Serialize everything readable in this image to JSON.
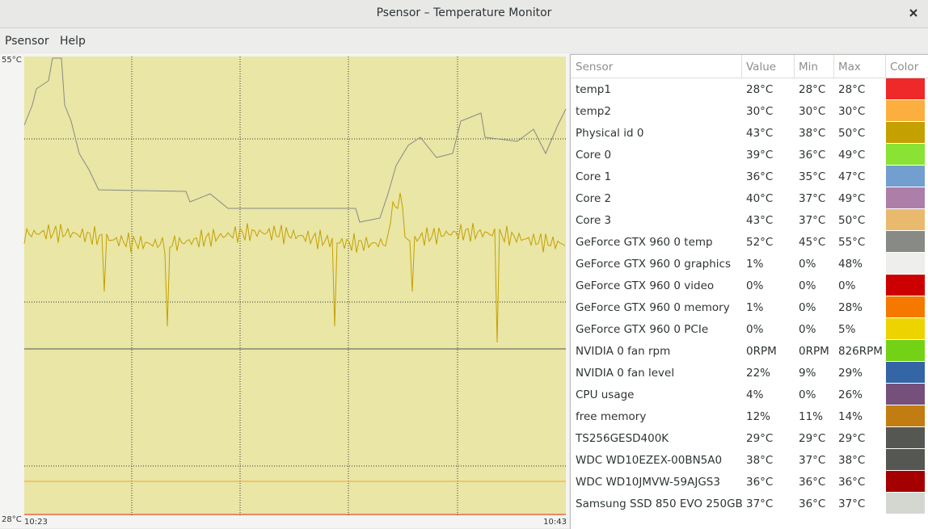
{
  "window": {
    "title": "Psensor – Temperature Monitor"
  },
  "menu": [
    "Psensor",
    "Help"
  ],
  "graph": {
    "y_max_label": "55°C",
    "y_min_label": "28°C",
    "x_start_label": "10:23",
    "x_end_label": "10:43"
  },
  "table": {
    "columns": [
      "Sensor",
      "Value",
      "Min",
      "Max",
      "Color"
    ],
    "rows": [
      [
        "temp1",
        "28°C",
        "28°C",
        "28°C",
        "#ef2929"
      ],
      [
        "temp2",
        "30°C",
        "30°C",
        "30°C",
        "#fcaf3e"
      ],
      [
        "Physical id 0",
        "43°C",
        "38°C",
        "50°C",
        "#c4a000"
      ],
      [
        "Core 0",
        "39°C",
        "36°C",
        "49°C",
        "#8ae234"
      ],
      [
        "Core 1",
        "36°C",
        "35°C",
        "47°C",
        "#729fcf"
      ],
      [
        "Core 2",
        "40°C",
        "37°C",
        "49°C",
        "#ad7fa8"
      ],
      [
        "Core 3",
        "43°C",
        "37°C",
        "50°C",
        "#e9b96e"
      ],
      [
        "GeForce GTX 960 0 temp",
        "52°C",
        "45°C",
        "55°C",
        "#888a85"
      ],
      [
        "GeForce GTX 960 0 graphics",
        "1%",
        "0%",
        "48%",
        "#eeeeec"
      ],
      [
        "GeForce GTX 960 0 video",
        "0%",
        "0%",
        "0%",
        "#cc0000"
      ],
      [
        "GeForce GTX 960 0 memory",
        "1%",
        "0%",
        "28%",
        "#f57900"
      ],
      [
        "GeForce GTX 960 0 PCIe",
        "0%",
        "0%",
        "5%",
        "#edd400"
      ],
      [
        "NVIDIA 0 fan rpm",
        "0RPM",
        "0RPM",
        "826RPM",
        "#73d216"
      ],
      [
        "NVIDIA 0 fan level",
        "22%",
        "9%",
        "29%",
        "#3465a4"
      ],
      [
        "CPU usage",
        "4%",
        "0%",
        "26%",
        "#75507b"
      ],
      [
        "free memory",
        "12%",
        "11%",
        "14%",
        "#c17d11"
      ],
      [
        "TS256GESD400K",
        "29°C",
        "29°C",
        "29°C",
        "#555753"
      ],
      [
        "WDC WD10EZEX-00BN5A0",
        "38°C",
        "37°C",
        "38°C",
        "#555753"
      ],
      [
        "WDC WD10JMVW-59AJGS3",
        "36°C",
        "36°C",
        "36°C",
        "#a40000"
      ],
      [
        "Samsung SSD 850 EVO 250GB",
        "37°C",
        "36°C",
        "37°C",
        "#d3d7cf"
      ]
    ]
  }
}
